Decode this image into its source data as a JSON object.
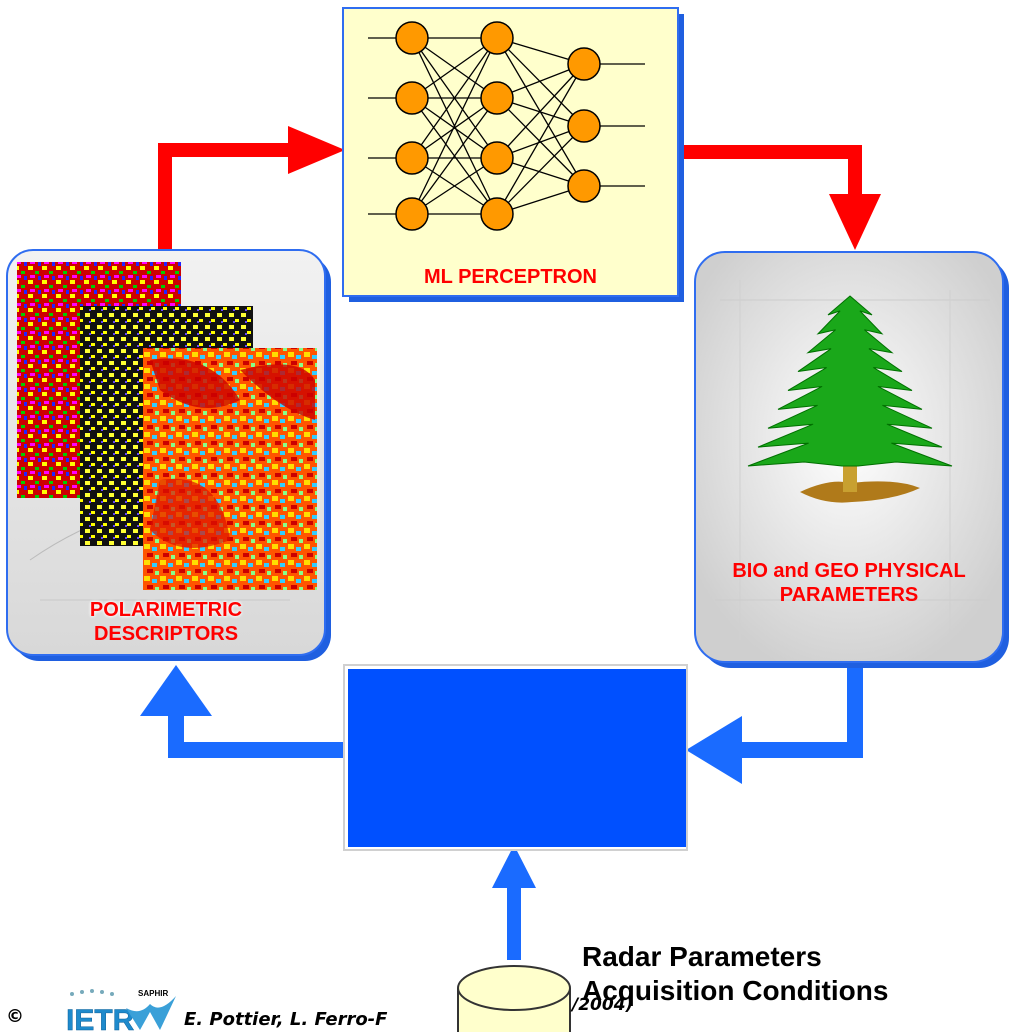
{
  "perceptron": {
    "label": "ML PERCEPTRON"
  },
  "descriptors": {
    "line1": "POLARIMETRIC",
    "line2": "DESCRIPTORS"
  },
  "parameters": {
    "line1": "BIO and GEO PHYSICAL",
    "line2": "PARAMETERS"
  },
  "radar": {
    "line1": "Radar Parameters",
    "line2": "Acquisition Conditions"
  },
  "footer": {
    "copyright": "©",
    "logo1": "IETR",
    "logo2": "SAPHIR",
    "credit": "E. Pottier, L. Ferro-F",
    "credit_end": "/2004)"
  },
  "colors": {
    "arrow_red": "#ff0000",
    "arrow_blue": "#0066ff",
    "box_blue": "#0050ff",
    "node": "#ff9900",
    "perceptron_bg": "#ffffcc",
    "cylinder": "#ffffcc",
    "tree": "#00a000",
    "label_red": "#ff0000"
  },
  "icons": [
    "tree-icon",
    "database-cylinder-icon",
    "neural-network-icon",
    "polarimetric-image-stack"
  ]
}
